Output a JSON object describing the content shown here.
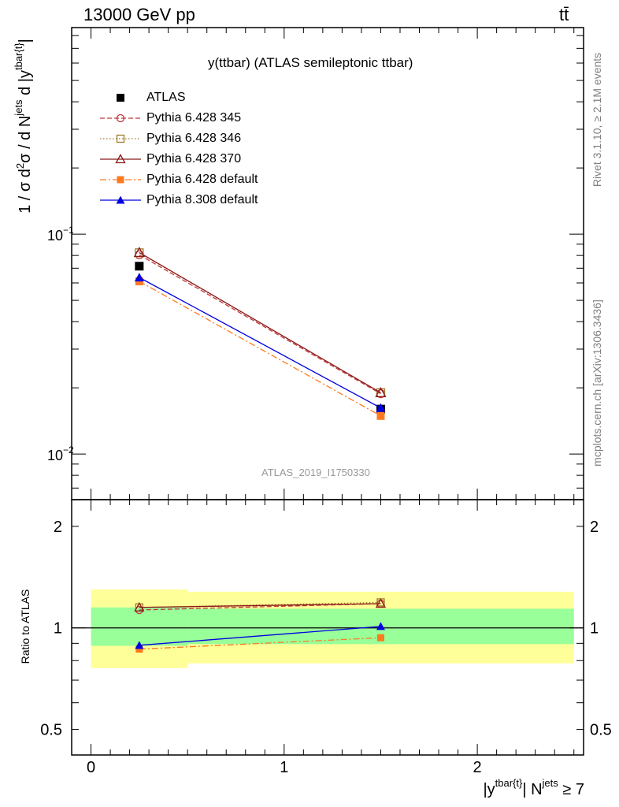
{
  "header": {
    "left": "13000 GeV pp",
    "right": "tt̄"
  },
  "side_labels": {
    "rivet": "Rivet 3.1.10, ≥ 2.1M events",
    "mcplots": "mcplots.cern.ch [arXiv:1306.3436]"
  },
  "chart_data": [
    {
      "type": "line",
      "title": "y(ttbar) (ATLAS semileptonic ttbar)",
      "watermark": "ATLAS_2019_I1750330",
      "ylabel": "1 / σ d²σ / d N^jets d |y^tbar{t}|",
      "xlabel": "|y^tbar{t}| N^jets ≥ 7",
      "yscale": "log",
      "ylim": [
        0.0062,
        0.87
      ],
      "xlim": [
        -0.1,
        2.55
      ],
      "y_ticks": [
        "10^−1",
        "10^−2"
      ],
      "legend": [
        {
          "label": "ATLAS",
          "color": "#000000",
          "marker": "square-filled",
          "line": "none"
        },
        {
          "label": "Pythia 6.428 345",
          "color": "#c0373d",
          "marker": "circle-open",
          "line": "dashed"
        },
        {
          "label": "Pythia 6.428 346",
          "color": "#a07a2a",
          "marker": "square-open",
          "line": "dotted"
        },
        {
          "label": "Pythia 6.428 370",
          "color": "#8b1a1a",
          "marker": "triangle-open",
          "line": "solid"
        },
        {
          "label": "Pythia 6.428 default",
          "color": "#ff7a1f",
          "marker": "square-filled",
          "line": "dashdot"
        },
        {
          "label": "Pythia 8.308 default",
          "color": "#0000e0",
          "marker": "triangle-filled",
          "line": "solid"
        }
      ],
      "x": [
        0.25,
        1.5
      ],
      "x_edges": [
        [
          0,
          0.5
        ],
        [
          0.5,
          2.5
        ]
      ],
      "series": [
        {
          "name": "ATLAS",
          "values": [
            0.0715,
            0.016
          ]
        },
        {
          "name": "Pythia 6.428 345",
          "values": [
            0.0805,
            0.0188
          ]
        },
        {
          "name": "Pythia 6.428 346",
          "values": [
            0.0822,
            0.019
          ]
        },
        {
          "name": "Pythia 6.428 370",
          "values": [
            0.0825,
            0.019
          ]
        },
        {
          "name": "Pythia 6.428 default",
          "values": [
            0.061,
            0.0149
          ]
        },
        {
          "name": "Pythia 8.308 default",
          "values": [
            0.0635,
            0.0162
          ]
        }
      ]
    },
    {
      "type": "line",
      "ylabel": "Ratio to ATLAS",
      "yscale": "log",
      "ylim": [
        0.42,
        2.4
      ],
      "xlim": [
        -0.1,
        2.55
      ],
      "x_ticks": [
        "0",
        "1",
        "2"
      ],
      "y_ticks": [
        "2",
        "1",
        "0.5"
      ],
      "reference": 1,
      "bands": [
        {
          "x_range": [
            0,
            0.5
          ],
          "yellow": [
            0.76,
            1.3
          ],
          "green": [
            0.885,
            1.15
          ]
        },
        {
          "x_range": [
            0.5,
            2.5
          ],
          "yellow": [
            0.785,
            1.28
          ],
          "green": [
            0.895,
            1.14
          ]
        }
      ],
      "x": [
        0.25,
        1.5
      ],
      "series": [
        {
          "name": "Pythia 6.428 345",
          "values": [
            1.13,
            1.18
          ]
        },
        {
          "name": "Pythia 6.428 346",
          "values": [
            1.15,
            1.19
          ]
        },
        {
          "name": "Pythia 6.428 370",
          "values": [
            1.15,
            1.18
          ]
        },
        {
          "name": "Pythia 6.428 default",
          "values": [
            0.865,
            0.935
          ]
        },
        {
          "name": "Pythia 8.308 default",
          "values": [
            0.888,
            1.01
          ]
        }
      ]
    }
  ]
}
